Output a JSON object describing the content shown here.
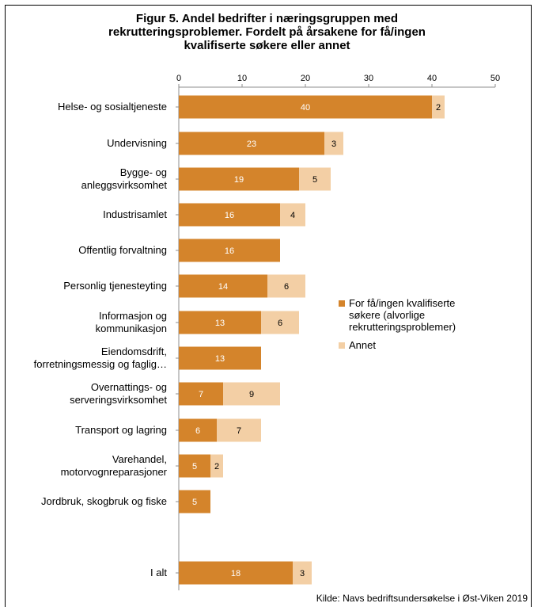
{
  "title": [
    "Figur 5. Andel bedrifter i næringsgruppen med",
    "rekrutteringsproblemer. Fordelt på årsakene for få/ingen",
    "kvalifiserte søkere eller annet"
  ],
  "source": "Kilde: Navs bedriftsundersøkelse i Øst-Viken 2019",
  "colors": {
    "series_main": "#d4842b",
    "series_other": "#f3cfa5",
    "label_on_main": "#ffffff",
    "label_on_other": "#000000"
  },
  "chart_data": {
    "type": "bar",
    "orientation": "horizontal",
    "stacked": true,
    "categories": [
      [
        "Helse- og sosialtjeneste"
      ],
      [
        "Undervisning"
      ],
      [
        "Bygge- og",
        "anleggsvirksomhet"
      ],
      [
        "Industrisamlet"
      ],
      [
        "Offentlig forvaltning"
      ],
      [
        "Personlig tjenesteyting"
      ],
      [
        "Informasjon og",
        "kommunikasjon"
      ],
      [
        "Eiendomsdrift,",
        "forretningsmessig og faglig…"
      ],
      [
        "Overnattings- og",
        "serveringsvirksomhet"
      ],
      [
        "Transport og lagring"
      ],
      [
        "Varehandel,",
        "motorvognreparasjoner"
      ],
      [
        "Jordbruk, skogbruk og fiske"
      ],
      [
        "I alt"
      ]
    ],
    "series": [
      {
        "name": "For få/ingen kvalifiserte søkere (alvorlige rekrutteringsproblemer)",
        "legend_lines": [
          "For få/ingen kvalifiserte",
          "søkere (alvorlige",
          "rekrutteringsproblemer)"
        ],
        "values": [
          40,
          23,
          19,
          16,
          16,
          14,
          13,
          13,
          7,
          6,
          5,
          5,
          18
        ]
      },
      {
        "name": "Annet",
        "legend_lines": [
          "Annet"
        ],
        "values": [
          2,
          3,
          5,
          4,
          null,
          6,
          6,
          null,
          9,
          7,
          2,
          null,
          3
        ]
      }
    ],
    "xlim": [
      0,
      50
    ],
    "xticks": [
      0,
      10,
      20,
      30,
      40,
      50
    ],
    "axis_position": "top",
    "grid": false,
    "legend_position": "right"
  }
}
